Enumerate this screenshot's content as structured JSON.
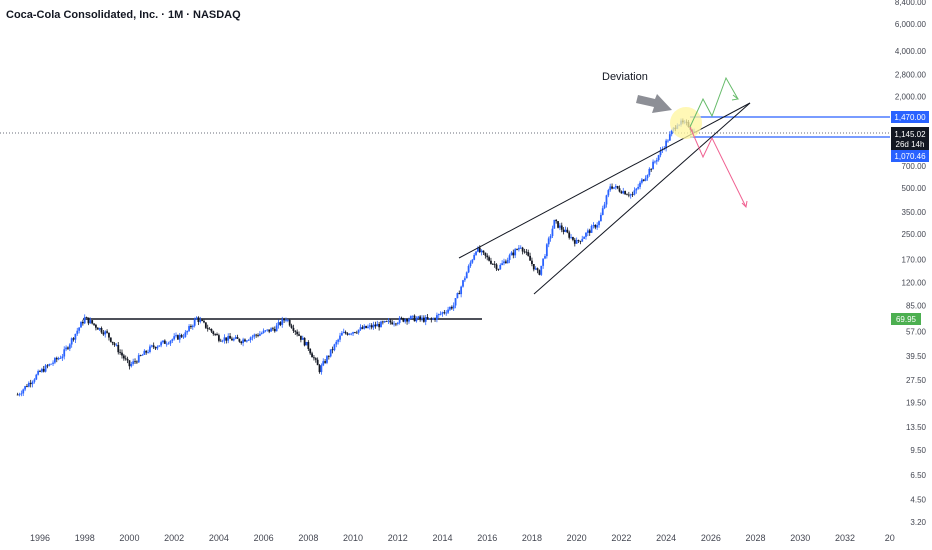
{
  "header": {
    "title": "Coca-Cola Consolidated, Inc. · 1M · NASDAQ"
  },
  "annotation": {
    "deviation": "Deviation"
  },
  "colors": {
    "up": "#2962ff",
    "down": "#131722",
    "blue_line": "#2962ff",
    "price_badge": "#131722",
    "mid_badge": "#2962ff",
    "volume_badge": "#4caf50",
    "green_path": "#4caf50",
    "red_path": "#f23645",
    "highlight": "#ffeb3b"
  },
  "chart_data": {
    "type": "candlestick",
    "scale": "log",
    "y_ticks": [
      "8,400.00",
      "6,000.00",
      "4,000.00",
      "2,800.00",
      "2,000.00",
      "700.00",
      "500.00",
      "350.00",
      "250.00",
      "170.00",
      "120.00",
      "85.00",
      "57.00",
      "39.50",
      "27.50",
      "19.50",
      "13.50",
      "9.50",
      "6.50",
      "4.50",
      "3.20"
    ],
    "x_ticks": [
      "1996",
      "1998",
      "2000",
      "2002",
      "2004",
      "2006",
      "2008",
      "2010",
      "2012",
      "2014",
      "2016",
      "2018",
      "2020",
      "2022",
      "2024",
      "2026",
      "2028",
      "2030",
      "2032",
      "20"
    ],
    "price_labels": {
      "upper": "1,470.00",
      "current": "1,145.02",
      "countdown": "26d 14h",
      "lower": "1,070.46",
      "green": "69.95"
    },
    "levels": {
      "resistance": 1470,
      "support": 1070.46,
      "base_line": 72
    },
    "series": [
      {
        "x": 1995.0,
        "y": 22
      },
      {
        "x": 1996.0,
        "y": 31
      },
      {
        "x": 1997.0,
        "y": 40
      },
      {
        "x": 1998.0,
        "y": 70
      },
      {
        "x": 1999.0,
        "y": 55
      },
      {
        "x": 2000.0,
        "y": 34
      },
      {
        "x": 2001.0,
        "y": 45
      },
      {
        "x": 2002.5,
        "y": 55
      },
      {
        "x": 2003.0,
        "y": 70
      },
      {
        "x": 2004.0,
        "y": 52
      },
      {
        "x": 2005.0,
        "y": 50
      },
      {
        "x": 2006.5,
        "y": 60
      },
      {
        "x": 2007.0,
        "y": 70
      },
      {
        "x": 2008.0,
        "y": 45
      },
      {
        "x": 2008.5,
        "y": 32
      },
      {
        "x": 2009.5,
        "y": 55
      },
      {
        "x": 2010.5,
        "y": 60
      },
      {
        "x": 2011.5,
        "y": 65
      },
      {
        "x": 2012.5,
        "y": 70
      },
      {
        "x": 2013.5,
        "y": 68
      },
      {
        "x": 2014.5,
        "y": 85
      },
      {
        "x": 2015.5,
        "y": 200
      },
      {
        "x": 2016.5,
        "y": 150
      },
      {
        "x": 2017.5,
        "y": 210
      },
      {
        "x": 2018.3,
        "y": 135
      },
      {
        "x": 2019.0,
        "y": 300
      },
      {
        "x": 2020.0,
        "y": 220
      },
      {
        "x": 2021.0,
        "y": 300
      },
      {
        "x": 2021.5,
        "y": 520
      },
      {
        "x": 2022.5,
        "y": 450
      },
      {
        "x": 2023.5,
        "y": 750
      },
      {
        "x": 2024.0,
        "y": 1000
      },
      {
        "x": 2024.5,
        "y": 1350
      },
      {
        "x": 2025.0,
        "y": 1300
      },
      {
        "x": 2025.3,
        "y": 1145
      }
    ],
    "scenario_paths": {
      "green": [
        {
          "x": 2025.3,
          "y": 1145
        },
        {
          "x": 2025.8,
          "y": 1650
        },
        {
          "x": 2026.3,
          "y": 1300
        },
        {
          "x": 2026.9,
          "y": 2600
        },
        {
          "x": 2027.3,
          "y": 1900
        }
      ],
      "red": [
        {
          "x": 2025.3,
          "y": 1145
        },
        {
          "x": 2025.8,
          "y": 820
        },
        {
          "x": 2026.3,
          "y": 950
        },
        {
          "x": 2027.3,
          "y": 350
        }
      ]
    },
    "wedge": {
      "upper": [
        {
          "x": 2015.0,
          "y": 190
        },
        {
          "x": 2026.7,
          "y": 1750
        }
      ],
      "lower": [
        {
          "x": 2017.8,
          "y": 105
        },
        {
          "x": 2026.7,
          "y": 1750
        }
      ]
    }
  }
}
